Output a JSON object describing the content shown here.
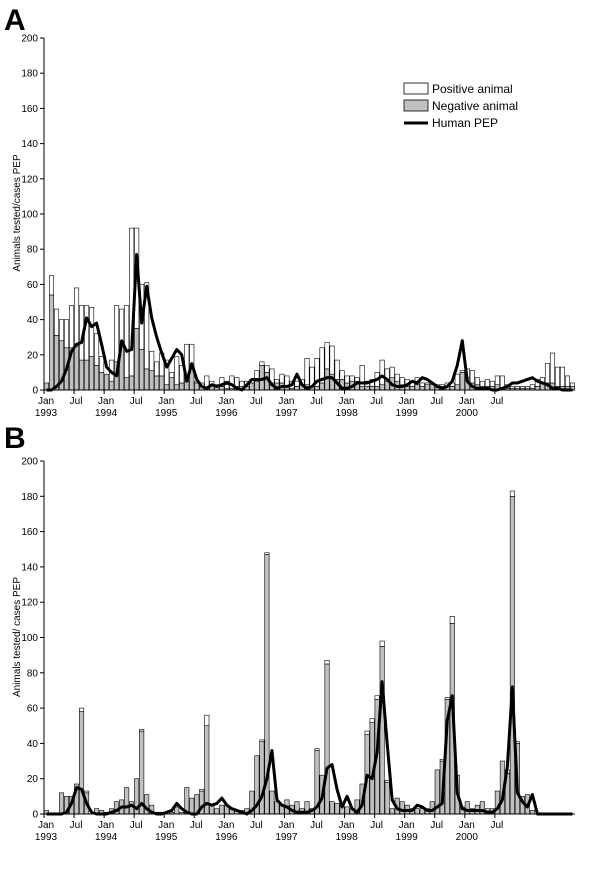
{
  "chart_data": [
    {
      "panel": "A",
      "type": "bar",
      "ylabel": "Animals tested/cases PEP",
      "ylim": [
        0,
        200
      ],
      "yticks": [
        0,
        20,
        40,
        60,
        80,
        100,
        120,
        140,
        160,
        180,
        200
      ],
      "months_start": "1993-01",
      "x_tick_labels": [
        {
          "month": "Jan",
          "year": "1993"
        },
        {
          "month": "Jul",
          "year": ""
        },
        {
          "month": "Jan",
          "year": "1994"
        },
        {
          "month": "Jul",
          "year": ""
        },
        {
          "month": "Jan",
          "year": "1995"
        },
        {
          "month": "Jul",
          "year": ""
        },
        {
          "month": "Jan",
          "year": "1996"
        },
        {
          "month": "Jul",
          "year": ""
        },
        {
          "month": "Jan",
          "year": "1997"
        },
        {
          "month": "Jul",
          "year": ""
        },
        {
          "month": "Jan",
          "year": "1998"
        },
        {
          "month": "Jul",
          "year": ""
        },
        {
          "month": "Jan",
          "year": "1999"
        },
        {
          "month": "Jul",
          "year": ""
        },
        {
          "month": "Jan",
          "year": "2000"
        },
        {
          "month": "Jul",
          "year": ""
        }
      ],
      "legend": {
        "position": "top-right",
        "entries": [
          {
            "label": "Positive animal",
            "style": "open-bar"
          },
          {
            "label": "Negative animal",
            "style": "gray-bar"
          },
          {
            "label": "Human PEP",
            "style": "line"
          }
        ]
      },
      "series": [
        {
          "name": "Negative animal",
          "values": [
            4,
            54,
            31,
            28,
            24,
            24,
            25,
            17,
            17,
            19,
            14,
            10,
            9,
            5,
            16,
            24,
            7,
            8,
            35,
            23,
            12,
            11,
            8,
            8,
            3,
            7,
            3,
            4,
            5,
            14,
            4,
            2,
            1,
            3,
            2,
            2,
            1,
            1,
            2,
            2,
            2,
            4,
            5,
            14,
            10,
            4,
            4,
            4,
            2,
            1,
            2,
            3,
            3,
            2,
            2,
            4,
            12,
            9,
            6,
            6,
            4,
            5,
            5,
            2,
            2,
            2,
            2,
            3,
            5,
            7,
            5,
            3,
            2,
            2,
            3,
            2,
            3,
            3,
            2,
            2,
            2,
            2,
            3,
            10,
            7,
            4,
            3,
            2,
            2,
            2,
            3,
            1,
            1,
            1,
            1,
            1,
            1,
            1,
            2,
            4,
            4,
            4,
            2,
            2,
            2,
            2
          ]
        },
        {
          "name": "Positive animal",
          "values": [
            0,
            11,
            15,
            12,
            16,
            24,
            33,
            31,
            31,
            28,
            18,
            9,
            0,
            12,
            32,
            22,
            41,
            84,
            57,
            37,
            49,
            11,
            8,
            13,
            14,
            3,
            16,
            10,
            21,
            12,
            1,
            2,
            7,
            2,
            1,
            5,
            4,
            7,
            5,
            3,
            3,
            2,
            6,
            2,
            4,
            8,
            2,
            5,
            6,
            4,
            3,
            3,
            15,
            11,
            16,
            20,
            15,
            16,
            11,
            5,
            4,
            3,
            2,
            12,
            3,
            4,
            8,
            14,
            7,
            6,
            4,
            4,
            4,
            3,
            4,
            2,
            1,
            1,
            1,
            1,
            2,
            2,
            6,
            1,
            5,
            7,
            4,
            3,
            4,
            3,
            5,
            7,
            2,
            1,
            1,
            1,
            1,
            2,
            4,
            3,
            11,
            17,
            11,
            11,
            6,
            2
          ]
        },
        {
          "name": "Human PEP",
          "values": [
            0,
            0,
            2,
            5,
            12,
            22,
            26,
            27,
            41,
            36,
            38,
            26,
            13,
            10,
            8,
            28,
            22,
            23,
            77,
            38,
            59,
            41,
            30,
            21,
            13,
            18,
            23,
            20,
            5,
            15,
            6,
            2,
            1,
            3,
            2,
            3,
            4,
            3,
            1,
            0,
            3,
            6,
            6,
            6,
            7,
            3,
            1,
            2,
            2,
            3,
            9,
            3,
            1,
            2,
            5,
            6,
            7,
            7,
            4,
            1,
            1,
            2,
            4,
            4,
            4,
            5,
            6,
            8,
            6,
            3,
            2,
            2,
            3,
            5,
            4,
            7,
            6,
            4,
            2,
            1,
            2,
            5,
            14,
            28,
            5,
            2,
            1,
            1,
            1,
            0,
            0,
            1,
            2,
            4,
            4,
            5,
            6,
            7,
            5,
            4,
            3,
            1,
            1,
            0,
            0,
            0
          ]
        }
      ]
    },
    {
      "panel": "B",
      "type": "bar",
      "ylabel": "Animals tested/ cases PEP",
      "ylim": [
        0,
        200
      ],
      "yticks": [
        0,
        20,
        40,
        60,
        80,
        100,
        120,
        140,
        160,
        180,
        200
      ],
      "months_start": "1993-01",
      "x_tick_labels": [
        {
          "month": "Jan",
          "year": "1993"
        },
        {
          "month": "Jul",
          "year": ""
        },
        {
          "month": "Jan",
          "year": "1994"
        },
        {
          "month": "Jul",
          "year": ""
        },
        {
          "month": "Jan",
          "year": "1995"
        },
        {
          "month": "Jul",
          "year": ""
        },
        {
          "month": "Jan",
          "year": "1996"
        },
        {
          "month": "Jul",
          "year": ""
        },
        {
          "month": "Jan",
          "year": "1997"
        },
        {
          "month": "Jul",
          "year": ""
        },
        {
          "month": "Jan",
          "year": "1998"
        },
        {
          "month": "Jul",
          "year": ""
        },
        {
          "month": "Jan",
          "year": "1999"
        },
        {
          "month": "Jul",
          "year": ""
        },
        {
          "month": "Jan",
          "year": "2000"
        },
        {
          "month": "Jul",
          "year": ""
        }
      ],
      "series": [
        {
          "name": "Negative animal",
          "values": [
            2,
            0,
            0,
            12,
            10,
            10,
            17,
            58,
            12,
            0,
            3,
            2,
            1,
            3,
            7,
            8,
            15,
            7,
            20,
            47,
            11,
            5,
            1,
            1,
            0,
            1,
            4,
            1,
            15,
            9,
            11,
            13,
            50,
            5,
            3,
            5,
            5,
            3,
            2,
            2,
            3,
            13,
            33,
            41,
            147,
            13,
            7,
            5,
            8,
            5,
            7,
            3,
            7,
            3,
            36,
            22,
            85,
            7,
            6,
            5,
            4,
            3,
            8,
            17,
            45,
            52,
            65,
            95,
            18,
            3,
            9,
            7,
            5,
            3,
            3,
            3,
            3,
            7,
            25,
            30,
            65,
            108,
            22,
            4,
            7,
            3,
            5,
            7,
            3,
            3,
            13,
            30,
            23,
            180,
            40,
            10,
            11,
            2,
            0,
            0,
            0,
            0,
            0,
            0,
            0,
            0
          ]
        },
        {
          "name": "Positive animal",
          "values": [
            0,
            0,
            0,
            0,
            0,
            0,
            0,
            2,
            1,
            0,
            0,
            0,
            0,
            0,
            0,
            0,
            0,
            0,
            0,
            1,
            0,
            0,
            0,
            0,
            0,
            0,
            0,
            0,
            0,
            0,
            0,
            1,
            6,
            0,
            0,
            0,
            0,
            0,
            0,
            0,
            0,
            0,
            0,
            1,
            1,
            0,
            0,
            0,
            0,
            0,
            0,
            0,
            0,
            0,
            1,
            0,
            2,
            0,
            0,
            0,
            0,
            0,
            0,
            0,
            2,
            2,
            2,
            3,
            1,
            0,
            0,
            0,
            0,
            0,
            0,
            0,
            0,
            0,
            0,
            1,
            1,
            4,
            0,
            0,
            0,
            0,
            0,
            0,
            0,
            0,
            0,
            0,
            2,
            3,
            1,
            0,
            0,
            0,
            0,
            0,
            0,
            0,
            0,
            0,
            0,
            0
          ]
        },
        {
          "name": "Human PEP",
          "values": [
            0,
            0,
            0,
            0,
            1,
            6,
            15,
            14,
            6,
            1,
            0,
            0,
            0,
            1,
            2,
            4,
            4,
            5,
            3,
            6,
            3,
            1,
            0,
            0,
            1,
            2,
            6,
            3,
            1,
            0,
            0,
            4,
            6,
            5,
            6,
            9,
            5,
            3,
            2,
            1,
            0,
            2,
            5,
            10,
            20,
            36,
            8,
            5,
            4,
            2,
            1,
            1,
            1,
            2,
            4,
            9,
            26,
            28,
            14,
            4,
            10,
            3,
            1,
            5,
            22,
            20,
            35,
            75,
            40,
            8,
            3,
            2,
            2,
            2,
            5,
            4,
            2,
            2,
            4,
            6,
            53,
            67,
            12,
            3,
            2,
            2,
            2,
            2,
            1,
            1,
            3,
            8,
            27,
            72,
            12,
            7,
            4,
            11,
            0,
            0,
            0,
            0,
            0,
            0,
            0,
            0
          ]
        }
      ]
    }
  ]
}
